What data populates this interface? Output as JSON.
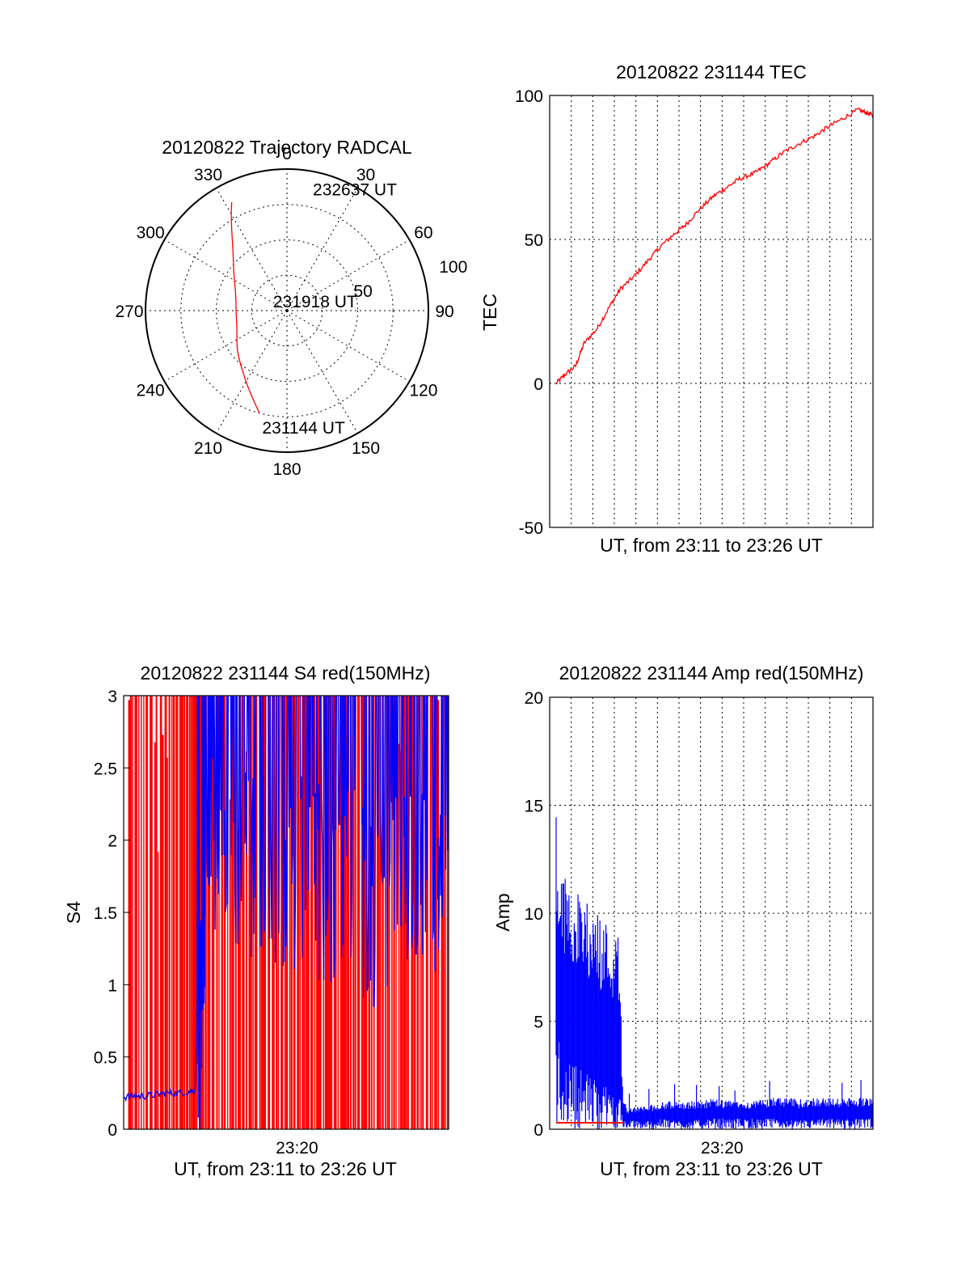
{
  "chart_data": [
    {
      "type": "polar",
      "title": "20120822 Trajectory RADCAL",
      "angle_labels": [
        "0",
        "30",
        "60",
        "90",
        "120",
        "150",
        "180",
        "210",
        "240",
        "270",
        "300",
        "330"
      ],
      "radial_labels": [
        "50",
        "100"
      ],
      "rmax": 100,
      "grid": true,
      "track": {
        "name": "",
        "points": [
          {
            "az": 195,
            "r": 75
          },
          {
            "az": 205,
            "r": 63
          },
          {
            "az": 218,
            "r": 52
          },
          {
            "az": 232,
            "r": 45
          },
          {
            "az": 248,
            "r": 38
          },
          {
            "az": 268,
            "r": 36
          },
          {
            "az": 288,
            "r": 38
          },
          {
            "az": 305,
            "r": 46
          },
          {
            "az": 318,
            "r": 57
          },
          {
            "az": 325,
            "r": 68
          },
          {
            "az": 330,
            "r": 79
          },
          {
            "az": 333,
            "r": 86
          }
        ]
      },
      "annotations": [
        {
          "text": "232637 UT",
          "az": 12,
          "r": 88
        },
        {
          "text": "231918 UT",
          "az": 305,
          "r": 12
        },
        {
          "text": "231144 UT",
          "az": 192,
          "r": 84
        }
      ],
      "colors": {
        "track": "#ff0000"
      }
    },
    {
      "type": "line",
      "title": "20120822 231144 TEC",
      "xlabel": "UT, from 23:11 to 23:26 UT",
      "ylabel": "TEC",
      "xlim": [
        0,
        15
      ],
      "ylim": [
        -50,
        100
      ],
      "yticks": [
        -50,
        0,
        50,
        100
      ],
      "x_gridlines": 14,
      "grid": true,
      "series": [
        {
          "name": "",
          "color": "#ff0000",
          "x": [
            0.3,
            0.7,
            1.2,
            1.6,
            2.2,
            2.8,
            3.3,
            3.9,
            4.6,
            5.2,
            5.8,
            6.3,
            6.9,
            7.6,
            8.2,
            8.8,
            9.5,
            10.1,
            10.8,
            11.5,
            12.3,
            12.9,
            13.6,
            14.3,
            14.7,
            15
          ],
          "values": [
            0,
            3,
            6,
            14,
            19,
            27,
            33,
            37,
            43,
            48,
            52,
            55,
            60,
            65,
            68,
            71,
            73,
            76,
            80,
            83,
            86,
            89,
            92,
            95,
            94,
            93
          ]
        }
      ]
    },
    {
      "type": "line",
      "title": "20120822 231144 S4 red(150MHz)",
      "xlabel": "UT, from 23:11 to 23:26 UT",
      "ylabel": "S4",
      "xlim": [
        0,
        15
      ],
      "ylim": [
        0,
        3
      ],
      "yticks": [
        0,
        0.5,
        1,
        1.5,
        2,
        2.5,
        3
      ],
      "ytick_labels": [
        "0",
        "0.5",
        "1",
        "1.5",
        "2",
        "2.5",
        "3"
      ],
      "xticks": [
        {
          "x": 8,
          "label": "23:20"
        }
      ],
      "grid": false,
      "series": [
        {
          "name": "",
          "color": "#ff0000",
          "description_range": [
            0.2,
            15
          ],
          "x_start": 0.2,
          "x_end": 15,
          "y_low": 0,
          "y_high": 3
        },
        {
          "name": "",
          "color": "#0000ff",
          "x": [
            0,
            0.5,
            1,
            1.5,
            2,
            2.5,
            3,
            3.3,
            3.5,
            3.8,
            4.5,
            5.5,
            6.5,
            7.5,
            8.5,
            9.5,
            10.5,
            11.5,
            12.5,
            13.5,
            14.5,
            15
          ],
          "values": [
            0.22,
            0.23,
            0.23,
            0.24,
            0.25,
            0.25,
            0.26,
            0.27,
            1.3,
            2.6,
            2.7,
            2.5,
            2.6,
            2.4,
            2.5,
            2.3,
            2.4,
            2.2,
            2.4,
            2.3,
            2.5,
            2.7
          ]
        }
      ]
    },
    {
      "type": "line",
      "title": "20120822 231144 Amp red(150MHz)",
      "xlabel": "UT, from 23:11 to 23:26 UT",
      "ylabel": "Amp",
      "xlim": [
        0,
        15
      ],
      "ylim": [
        0,
        20
      ],
      "yticks": [
        0,
        5,
        10,
        15,
        20
      ],
      "xticks": [
        {
          "x": 8,
          "label": "23:20"
        }
      ],
      "x_gridlines": 14,
      "grid": true,
      "series": [
        {
          "name": "",
          "color": "#0000ff",
          "x": [
            0.3,
            0.8,
            1.3,
            1.8,
            2.3,
            2.8,
            3.2,
            3.4,
            3.6,
            4.5,
            5.5,
            6.5,
            7.5,
            8.5,
            9.5,
            10.5,
            11.5,
            12.5,
            13.5,
            14.5,
            15
          ],
          "envelope_high": [
            12.5,
            11.5,
            11,
            10.5,
            10,
            9.5,
            9,
            1.5,
            1,
            1.1,
            1.3,
            1.3,
            1.4,
            1.3,
            1.3,
            1.5,
            1.4,
            1.5,
            1.4,
            1.5,
            1.6
          ],
          "envelope_low": [
            4.5,
            3.5,
            3,
            2.6,
            2.2,
            1.9,
            1.8,
            0.6,
            0.4,
            0.4,
            0.5,
            0.4,
            0.5,
            0.5,
            0.5,
            0.5,
            0.4,
            0.5,
            0.5,
            0.5,
            0.5
          ]
        },
        {
          "name": "",
          "color": "#ff0000",
          "x": [
            0.3,
            1,
            2,
            3,
            3.4
          ],
          "values": [
            0.3,
            0.3,
            0.3,
            0.3,
            0.3
          ]
        }
      ]
    }
  ]
}
